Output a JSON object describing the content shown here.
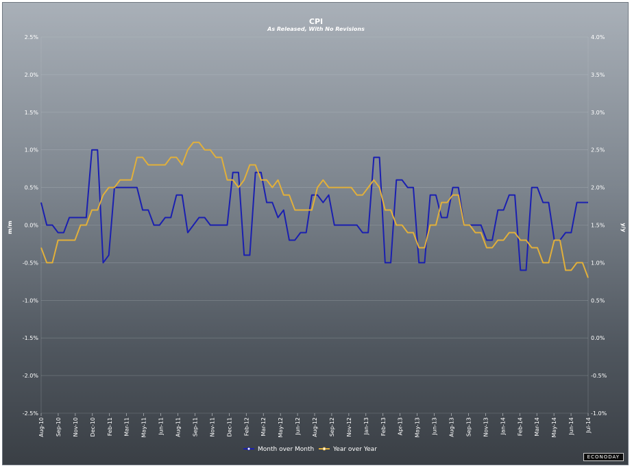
{
  "chart_data": {
    "type": "line",
    "title": "CPI",
    "subtitle": "As Released, With No Revisions",
    "ylabel_left": "m/m",
    "ylabel_right": "y/y",
    "ylim_left": [
      -2.5,
      2.5
    ],
    "ylim_right": [
      -1.0,
      4.0
    ],
    "yticks_left": [
      "2.5%",
      "2.0%",
      "1.5%",
      "1.0%",
      "0.5%",
      "0.0%",
      "-0.5%",
      "-1.0%",
      "-1.5%",
      "-2.0%",
      "-2.5%"
    ],
    "yticks_right": [
      "4.0%",
      "3.5%",
      "3.0%",
      "2.5%",
      "2.0%",
      "1.5%",
      "1.0%",
      "0.5%",
      "0.0%",
      "-0.5%",
      "-1.0%"
    ],
    "x_ticks": [
      "Aug-10",
      "Sep-10",
      "Nov-10",
      "Dec-10",
      "Feb-11",
      "Mar-11",
      "May-11",
      "Jun-11",
      "Aug-11",
      "Sep-11",
      "Nov-11",
      "Dec-11",
      "Feb-12",
      "Mar-12",
      "May-12",
      "Jun-12",
      "Aug-12",
      "Sep-12",
      "Nov-12",
      "Jan-13",
      "Feb-13",
      "Apr-13",
      "May-13",
      "Jun-13",
      "Aug-13",
      "Sep-13",
      "Nov-13",
      "Jan-14",
      "Feb-14",
      "Mar-14",
      "May-14",
      "Jun-14",
      "Jul-14"
    ],
    "grid": true,
    "legend_position": "bottom-center",
    "series": [
      {
        "name": "Month over Month",
        "axis": "left",
        "color": "#1a1fb0",
        "values": [
          0.3,
          0.0,
          0.0,
          -0.1,
          -0.1,
          0.1,
          0.1,
          0.1,
          0.1,
          1.0,
          1.0,
          -0.5,
          -0.4,
          0.5,
          0.5,
          0.5,
          0.5,
          0.5,
          0.2,
          0.2,
          0.0,
          0.0,
          0.1,
          0.1,
          0.4,
          0.4,
          -0.1,
          0.0,
          0.1,
          0.1,
          0.0,
          0.0,
          0.0,
          0.0,
          0.7,
          0.7,
          -0.4,
          -0.4,
          0.7,
          0.7,
          0.3,
          0.3,
          0.1,
          0.2,
          -0.2,
          -0.2,
          -0.1,
          -0.1,
          0.4,
          0.4,
          0.3,
          0.4,
          0.0,
          0.0,
          0.0,
          0.0,
          0.0,
          -0.1,
          -0.1,
          0.9,
          0.9,
          -0.5,
          -0.5,
          0.6,
          0.6,
          0.5,
          0.5,
          -0.5,
          -0.5,
          0.4,
          0.4,
          0.1,
          0.1,
          0.5,
          0.5,
          0.0,
          0.0,
          0.0,
          0.0,
          -0.2,
          -0.2,
          0.2,
          0.2,
          0.4,
          0.4,
          -0.6,
          -0.6,
          0.5,
          0.5,
          0.3,
          0.3,
          -0.2,
          -0.2,
          -0.1,
          -0.1,
          0.3,
          0.3,
          0.3
        ]
      },
      {
        "name": "Year over Year",
        "axis": "right",
        "color": "#e2b03a",
        "values": [
          1.2,
          1.0,
          1.0,
          1.3,
          1.3,
          1.3,
          1.3,
          1.5,
          1.5,
          1.7,
          1.7,
          1.9,
          2.0,
          2.0,
          2.1,
          2.1,
          2.1,
          2.4,
          2.4,
          2.3,
          2.3,
          2.3,
          2.3,
          2.4,
          2.4,
          2.3,
          2.5,
          2.6,
          2.6,
          2.5,
          2.5,
          2.4,
          2.4,
          2.1,
          2.1,
          2.0,
          2.1,
          2.3,
          2.3,
          2.1,
          2.1,
          2.0,
          2.1,
          1.9,
          1.9,
          1.7,
          1.7,
          1.7,
          1.7,
          2.0,
          2.1,
          2.0,
          2.0,
          2.0,
          2.0,
          2.0,
          1.9,
          1.9,
          2.0,
          2.1,
          2.0,
          1.7,
          1.7,
          1.5,
          1.5,
          1.4,
          1.4,
          1.2,
          1.2,
          1.5,
          1.5,
          1.8,
          1.8,
          1.9,
          1.9,
          1.5,
          1.5,
          1.4,
          1.4,
          1.2,
          1.2,
          1.3,
          1.3,
          1.4,
          1.4,
          1.3,
          1.3,
          1.2,
          1.2,
          1.0,
          1.0,
          1.3,
          1.3,
          0.9,
          0.9,
          1.0,
          1.0,
          0.8
        ]
      }
    ]
  },
  "logo_text": "ECONODAY"
}
